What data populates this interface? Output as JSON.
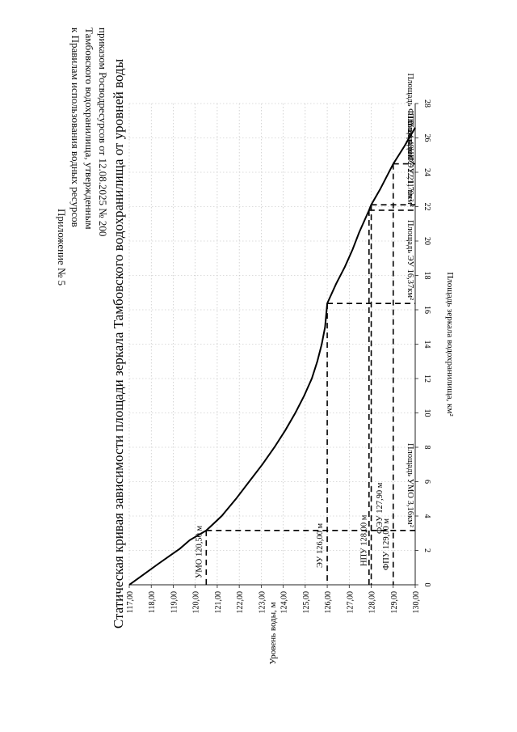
{
  "header": {
    "lines": [
      "Приложение № 5",
      "к Правилам использования водных ресурсов",
      "Тамбовского водохранилища, утвержденным",
      "приказом Росводресурсов от 12.08.2025 № 200"
    ]
  },
  "chart_data": {
    "type": "line",
    "title": "Статическая кривая зависимости площади зеркала Тамбовского водохранилища от уровней воды",
    "xlabel": "Площадь зеркала водохранилища, км²",
    "ylabel": "Уровень воды, м",
    "xlim": [
      0,
      28
    ],
    "ylim": [
      117,
      130
    ],
    "x_ticks": [
      "0",
      "2",
      "4",
      "6",
      "8",
      "10",
      "12",
      "14",
      "16",
      "18",
      "20",
      "22",
      "24",
      "26",
      "28"
    ],
    "y_ticks": [
      "117,00",
      "118,00",
      "119,00",
      "120,00",
      "121,00",
      "122,00",
      "123,00",
      "124,00",
      "125,00",
      "126,00",
      "127,00",
      "128,00",
      "129,00",
      "130,00"
    ],
    "grid": true,
    "series": [
      {
        "x": [
          0,
          0.6,
          1.2,
          1.7,
          2.1,
          2.6,
          3.16,
          4.0,
          5.0,
          6.0,
          7.0,
          8.0,
          9.0,
          10.0,
          11.0,
          12.0,
          13.0,
          14.0,
          15.0,
          16.37,
          17.5,
          18.5,
          19.5,
          20.5,
          21.79,
          22.11,
          23.0,
          24.49,
          25.5,
          26.6
        ],
        "y": [
          117.0,
          117.65,
          118.3,
          118.85,
          119.3,
          119.75,
          120.5,
          121.2,
          121.85,
          122.45,
          123.05,
          123.6,
          124.1,
          124.55,
          124.95,
          125.3,
          125.55,
          125.75,
          125.9,
          126.0,
          126.4,
          126.8,
          127.15,
          127.45,
          127.9,
          128.0,
          128.4,
          129.0,
          129.5,
          130.0
        ]
      }
    ],
    "markers": [
      {
        "id": "fpu",
        "area": 24.49,
        "level": 129.0,
        "level_label": "ФПУ 129,00 м",
        "area_label": "Площадь ФПУ 24,49км²"
      },
      {
        "id": "npu",
        "area": 22.11,
        "level": 128.0,
        "level_label": "НПУ 128,00 м",
        "area_label": "Площадь НПУ 22,11 км²"
      },
      {
        "id": "feu",
        "area": 21.79,
        "level": 127.9,
        "level_label": "ФЭУ 127,90 м",
        "area_label": "Площадь ФЭУ 21,79км²"
      },
      {
        "id": "eu",
        "area": 16.37,
        "level": 126.0,
        "level_label": "ЭУ 126,00 м",
        "area_label": "Площадь ЭУ 16,37км²"
      },
      {
        "id": "umo",
        "area": 3.16,
        "level": 120.5,
        "level_label": "УМО 120,50 м",
        "area_label": "Площадь УМО 3,16км²"
      }
    ]
  }
}
